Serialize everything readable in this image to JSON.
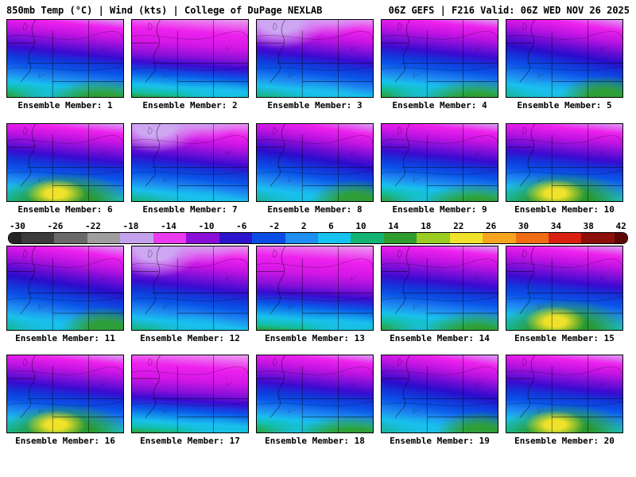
{
  "header": {
    "left_title": "850mb Temp (°C) | Wind (kts) | College of DuPage NEXLAB",
    "right_title": "06Z GEFS | F216 Valid: 06Z WED NOV 26 2025"
  },
  "panels": [
    {
      "label": "Ensemble Member: 1"
    },
    {
      "label": "Ensemble Member: 2"
    },
    {
      "label": "Ensemble Member: 3"
    },
    {
      "label": "Ensemble Member: 4"
    },
    {
      "label": "Ensemble Member: 5"
    },
    {
      "label": "Ensemble Member: 6"
    },
    {
      "label": "Ensemble Member: 7"
    },
    {
      "label": "Ensemble Member: 8"
    },
    {
      "label": "Ensemble Member: 9"
    },
    {
      "label": "Ensemble Member: 10"
    },
    {
      "label": "Ensemble Member: 11"
    },
    {
      "label": "Ensemble Member: 12"
    },
    {
      "label": "Ensemble Member: 13"
    },
    {
      "label": "Ensemble Member: 14"
    },
    {
      "label": "Ensemble Member: 15"
    },
    {
      "label": "Ensemble Member: 16"
    },
    {
      "label": "Ensemble Member: 17"
    },
    {
      "label": "Ensemble Member: 18"
    },
    {
      "label": "Ensemble Member: 19"
    },
    {
      "label": "Ensemble Member: 20"
    }
  ],
  "colorbar": {
    "unit": "°C",
    "ticks": [
      "-30",
      "-26",
      "-22",
      "-18",
      "-14",
      "-10",
      "-6",
      "-2",
      "2",
      "6",
      "10",
      "14",
      "18",
      "22",
      "26",
      "30",
      "34",
      "38",
      "42"
    ],
    "colors": [
      "#3c3c3c",
      "#6a6a6a",
      "#9e9e9e",
      "#c5a3ec",
      "#ea3cee",
      "#8a10d8",
      "#2a14cc",
      "#0a4ce6",
      "#1e8ef0",
      "#17c3f0",
      "#13b574",
      "#2f9e2f",
      "#9acc22",
      "#f0e22a",
      "#f5a61e",
      "#ef6c14",
      "#d8220f",
      "#8c0f0a"
    ],
    "left_cap_color": "#242424",
    "right_cap_color": "#5e0605"
  }
}
